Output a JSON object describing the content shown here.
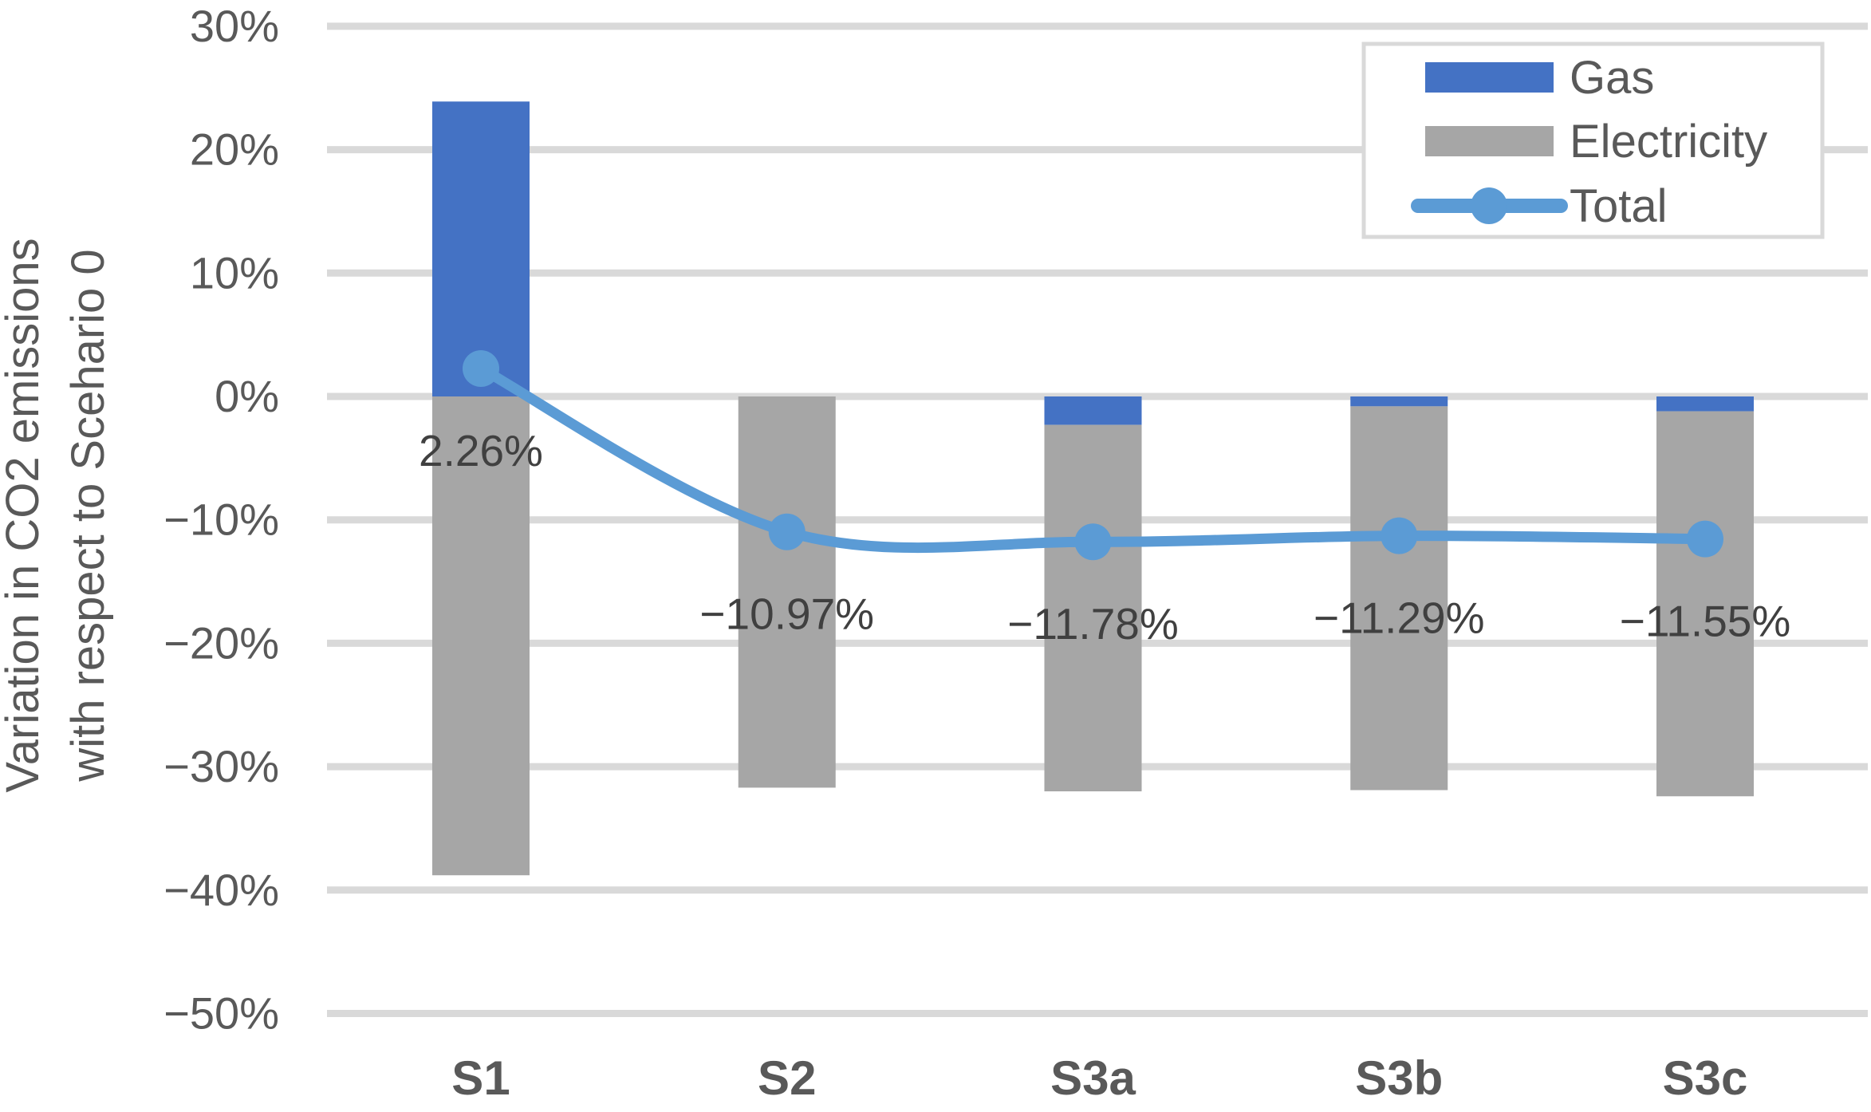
{
  "chart_data": {
    "type": "bar",
    "subtype": "stacked-bars-with-total-line",
    "categories": [
      "S1",
      "S2",
      "S3a",
      "S3b",
      "S3c"
    ],
    "series": [
      {
        "name": "Gas",
        "type": "bar",
        "color": "#4472C4",
        "values": [
          23.9,
          0,
          -2.3,
          -0.8,
          -1.2
        ]
      },
      {
        "name": "Electricity",
        "type": "bar",
        "color": "#A6A6A6",
        "values": [
          -38.8,
          -31.7,
          -29.7,
          -31.1,
          -31.2
        ]
      },
      {
        "name": "Total",
        "type": "line",
        "color": "#5B9BD5",
        "values": [
          2.26,
          -10.97,
          -11.78,
          -11.29,
          -11.55
        ]
      }
    ],
    "data_labels": {
      "series": "Total",
      "texts": [
        "2.26%",
        "−10.97%",
        "−11.78%",
        "−11.29%",
        "−11.55%"
      ]
    },
    "ylabel_line1": "Variation in CO2 emissions",
    "ylabel_line2": "with respect to Scehario 0",
    "yticks": [
      {
        "label": "30%",
        "value": 30
      },
      {
        "label": "20%",
        "value": 20
      },
      {
        "label": "10%",
        "value": 10
      },
      {
        "label": "0%",
        "value": 0
      },
      {
        "label": "−10%",
        "value": -10
      },
      {
        "label": "−20%",
        "value": -20
      },
      {
        "label": "−30%",
        "value": -30
      },
      {
        "label": "−40%",
        "value": -40
      },
      {
        "label": "−50%",
        "value": -50
      }
    ],
    "ylim": [
      -50,
      30
    ],
    "grid": true,
    "legend": {
      "position": "top-right",
      "entries": [
        {
          "label": "Gas",
          "swatch": "bar",
          "color": "#4472C4"
        },
        {
          "label": "Electricity",
          "swatch": "bar",
          "color": "#A6A6A6"
        },
        {
          "label": "Total",
          "swatch": "line-marker",
          "color": "#5B9BD5"
        }
      ]
    },
    "colors": {
      "gridline": "#D9D9D9",
      "tick_text": "#595959",
      "axis_title_text": "#595959",
      "category_text": "#595959",
      "data_label_text": "#404040",
      "legend_text": "#595959",
      "legend_border": "#D9D9D9",
      "background": "#FFFFFF"
    }
  }
}
